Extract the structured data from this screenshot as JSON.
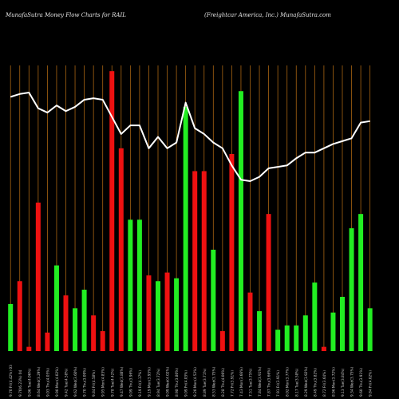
{
  "header": {
    "left_title": "MunafaSutra  Money Flow  Charts for RAIL",
    "right_title": "(Freightcar America,  Inc.) MunafaSutra.com"
  },
  "colors": {
    "background": "#000000",
    "up_bar": "#22ee22",
    "down_bar": "#ee1111",
    "vertical_line": "#a86412",
    "price_line": "#ffffff",
    "label": "#cccccc"
  },
  "chart_data": {
    "type": "bar",
    "title": "MunafaSutra  Money Flow  Charts for RAIL",
    "subtitle": "(Freightcar America,  Inc.) MunafaSutra.com",
    "grid": "vertical lines at each bar",
    "ylim": [
      0,
      100
    ],
    "categories": [
      "9.70 Fri(4.42%) 03",
      "9.70(6.23%) 04",
      "9.06 Tue(4.06%)",
      "8.64 Wed(3.29%)",
      "9.03 Thu(4.05%)",
      "9.90 Mon(4.02%)",
      "9.42 Tue(4.58%)",
      "9.62 Wed(3.60%)",
      "9.70 Thu(3.09%)",
      "9.84 Fri(4.58%)",
      "9.95 Mon(4.83%)",
      "9.78 Tue(4.42%)",
      "9.47 Wed(3.88%)",
      "9.09 Thu(3.96%)",
      "9.19 Fri(4.17%)",
      "9.19 Mon(3.95%)",
      "8.94 Tue(3.72%)",
      "9.09 Wed(4.02%)",
      "8.98 Thu(3.80%)",
      "9.09 Fri(4.03%)",
      "9.20 Mon(4.52%)",
      "8.89 Tue(3.71%)",
      "8.53 Wed(3.75%)",
      "8.28 Thu(4.06%)",
      "7.72 Fri(3.91%)",
      "7.43 Mon(3.66%)",
      "7.51 Tue(3.75%)",
      "7.84 Wed(3.91%)",
      "7.87 Thu(3.66%)",
      "7.91 Fri(3.91%)",
      "8.02 Mon(3.77%)",
      "8.17 Tue(3.58%)",
      "8.29 Wed(3.92%)",
      "8.49 Thu(3.82%)",
      "8.72 Fri(3.64%)",
      "8.96 Mon(3.72%)",
      "9.13 Tue(3.84%)",
      "9.34 Wed(3.75%)",
      "9.60 Thu(3.91%)",
      "9.84 Fri(4.02%)"
    ],
    "series": [
      {
        "type": "bar",
        "directions": [
          "up",
          "down",
          "down",
          "down",
          "down",
          "up",
          "down",
          "up",
          "up",
          "down",
          "down",
          "down",
          "down",
          "up",
          "up",
          "down",
          "up",
          "down",
          "up",
          "up",
          "down",
          "down",
          "up",
          "down",
          "down",
          "up",
          "down",
          "up",
          "down",
          "up",
          "up",
          "up",
          "up",
          "up",
          "down",
          "up",
          "up",
          "up",
          "up",
          "up"
        ],
        "values": [
          16.5,
          24.5,
          1.5,
          52,
          6.5,
          30,
          19.5,
          15,
          21.5,
          12.5,
          7,
          98,
          71,
          46,
          46,
          26.5,
          24.5,
          27.5,
          25.5,
          85.5,
          63,
          63,
          35.5,
          7,
          69,
          91,
          20.5,
          14,
          48,
          7.5,
          9,
          9,
          12.5,
          24,
          1.5,
          13.5,
          19,
          43,
          48,
          15
        ]
      },
      {
        "type": "line",
        "values": [
          89,
          90,
          90.5,
          85,
          83.5,
          86,
          84,
          85.5,
          88,
          88.5,
          88,
          82,
          76,
          79,
          79,
          71,
          75,
          71,
          73,
          87,
          78,
          76,
          73,
          71,
          65,
          60,
          59.5,
          61,
          64,
          64.5,
          65,
          67.5,
          69.5,
          69.5,
          71,
          72.5,
          73.5,
          74.5,
          80,
          80.5
        ]
      }
    ]
  }
}
